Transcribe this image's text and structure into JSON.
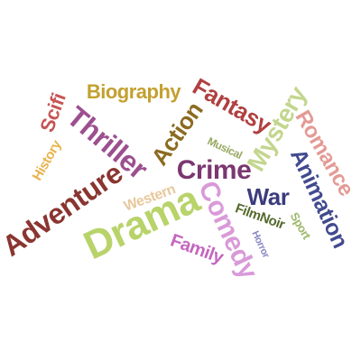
{
  "words": [
    {
      "text": "Biography",
      "color": "#c3a030",
      "size": 22,
      "rot": 0
    },
    {
      "text": "Fantasy",
      "color": "#b04040",
      "size": 26,
      "rot": 30
    },
    {
      "text": "Scifi",
      "color": "#c65555",
      "size": 22,
      "rot": -70
    },
    {
      "text": "History",
      "color": "#e8b34c",
      "size": 15,
      "rot": -60
    },
    {
      "text": "Thriller",
      "color": "#9c4f8f",
      "size": 32,
      "rot": 40
    },
    {
      "text": "Action",
      "color": "#8b6b20",
      "size": 26,
      "rot": -55
    },
    {
      "text": "Mystery",
      "color": "#c3d68e",
      "size": 28,
      "rot": -60
    },
    {
      "text": "Romance",
      "color": "#e49a94",
      "size": 24,
      "rot": 60
    },
    {
      "text": "Musical",
      "color": "#98a862",
      "size": 12,
      "rot": 25
    },
    {
      "text": "Crime",
      "color": "#7a3770",
      "size": 30,
      "rot": 0
    },
    {
      "text": "Animation",
      "color": "#424a8f",
      "size": 25,
      "rot": 65
    },
    {
      "text": "Adventure",
      "color": "#8a3530",
      "size": 32,
      "rot": -35
    },
    {
      "text": "Western",
      "color": "#e8c89c",
      "size": 16,
      "rot": -20
    },
    {
      "text": "War",
      "color": "#3b3c7d",
      "size": 26,
      "rot": 0
    },
    {
      "text": "Drama",
      "color": "#b8d36a",
      "size": 44,
      "rot": -25
    },
    {
      "text": "Comedy",
      "color": "#d99ad9",
      "size": 30,
      "rot": 65
    },
    {
      "text": "FilmNoir",
      "color": "#546a2c",
      "size": 15,
      "rot": 20
    },
    {
      "text": "Sport",
      "color": "#9db86a",
      "size": 13,
      "rot": 60
    },
    {
      "text": "Family",
      "color": "#c466bf",
      "size": 20,
      "rot": 20
    },
    {
      "text": "Horror",
      "color": "#8a89c4",
      "size": 11,
      "rot": 65
    }
  ]
}
